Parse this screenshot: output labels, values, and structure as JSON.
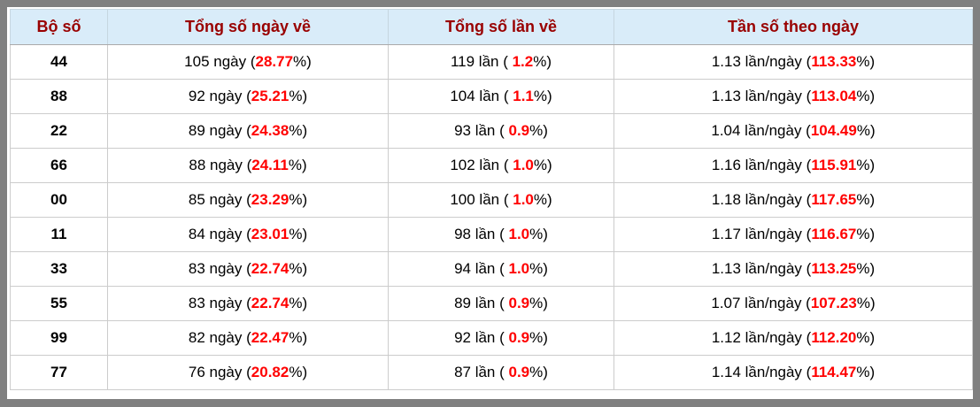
{
  "colors": {
    "frame": "#808080",
    "header_bg": "#d9ecf9",
    "header_text": "#990000",
    "highlight_red": "#ff0000",
    "grid_line": "#cccccc",
    "body_text": "#000000"
  },
  "table": {
    "columns": [
      {
        "label": "Bộ số"
      },
      {
        "label": "Tổng số ngày về"
      },
      {
        "label": "Tổng số lần về"
      },
      {
        "label": "Tần số theo ngày"
      }
    ],
    "rows": [
      {
        "pair": "44",
        "days": {
          "prefix": "105 ngày (",
          "highlight": "28.77",
          "suffix": "%)"
        },
        "times": {
          "prefix": "119 lần ( ",
          "highlight": "1.2",
          "suffix": "%)"
        },
        "freq": {
          "prefix": "1.13 lần/ngày (",
          "highlight": "113.33",
          "suffix": "%)"
        }
      },
      {
        "pair": "88",
        "days": {
          "prefix": "92 ngày (",
          "highlight": "25.21",
          "suffix": "%)"
        },
        "times": {
          "prefix": "104 lần ( ",
          "highlight": "1.1",
          "suffix": "%)"
        },
        "freq": {
          "prefix": "1.13 lần/ngày (",
          "highlight": "113.04",
          "suffix": "%)"
        }
      },
      {
        "pair": "22",
        "days": {
          "prefix": "89 ngày (",
          "highlight": "24.38",
          "suffix": "%)"
        },
        "times": {
          "prefix": "93 lần ( ",
          "highlight": "0.9",
          "suffix": "%)"
        },
        "freq": {
          "prefix": "1.04 lần/ngày (",
          "highlight": "104.49",
          "suffix": "%)"
        }
      },
      {
        "pair": "66",
        "days": {
          "prefix": "88 ngày (",
          "highlight": "24.11",
          "suffix": "%)"
        },
        "times": {
          "prefix": "102 lần ( ",
          "highlight": "1.0",
          "suffix": "%)"
        },
        "freq": {
          "prefix": "1.16 lần/ngày (",
          "highlight": "115.91",
          "suffix": "%)"
        }
      },
      {
        "pair": "00",
        "days": {
          "prefix": "85 ngày (",
          "highlight": "23.29",
          "suffix": "%)"
        },
        "times": {
          "prefix": "100 lần ( ",
          "highlight": "1.0",
          "suffix": "%)"
        },
        "freq": {
          "prefix": "1.18 lần/ngày (",
          "highlight": "117.65",
          "suffix": "%)"
        }
      },
      {
        "pair": "11",
        "days": {
          "prefix": "84 ngày (",
          "highlight": "23.01",
          "suffix": "%)"
        },
        "times": {
          "prefix": "98 lần ( ",
          "highlight": "1.0",
          "suffix": "%)"
        },
        "freq": {
          "prefix": "1.17 lần/ngày (",
          "highlight": "116.67",
          "suffix": "%)"
        }
      },
      {
        "pair": "33",
        "days": {
          "prefix": "83 ngày (",
          "highlight": "22.74",
          "suffix": "%)"
        },
        "times": {
          "prefix": "94 lần ( ",
          "highlight": "1.0",
          "suffix": "%)"
        },
        "freq": {
          "prefix": "1.13 lần/ngày (",
          "highlight": "113.25",
          "suffix": "%)"
        }
      },
      {
        "pair": "55",
        "days": {
          "prefix": "83 ngày (",
          "highlight": "22.74",
          "suffix": "%)"
        },
        "times": {
          "prefix": "89 lần ( ",
          "highlight": "0.9",
          "suffix": "%)"
        },
        "freq": {
          "prefix": "1.07 lần/ngày (",
          "highlight": "107.23",
          "suffix": "%)"
        }
      },
      {
        "pair": "99",
        "days": {
          "prefix": "82 ngày (",
          "highlight": "22.47",
          "suffix": "%)"
        },
        "times": {
          "prefix": "92 lần ( ",
          "highlight": "0.9",
          "suffix": "%)"
        },
        "freq": {
          "prefix": "1.12 lần/ngày (",
          "highlight": "112.20",
          "suffix": "%)"
        }
      },
      {
        "pair": "77",
        "days": {
          "prefix": "76 ngày (",
          "highlight": "20.82",
          "suffix": "%)"
        },
        "times": {
          "prefix": "87 lần ( ",
          "highlight": "0.9",
          "suffix": "%)"
        },
        "freq": {
          "prefix": "1.14 lần/ngày (",
          "highlight": "114.47",
          "suffix": "%)"
        }
      }
    ]
  }
}
